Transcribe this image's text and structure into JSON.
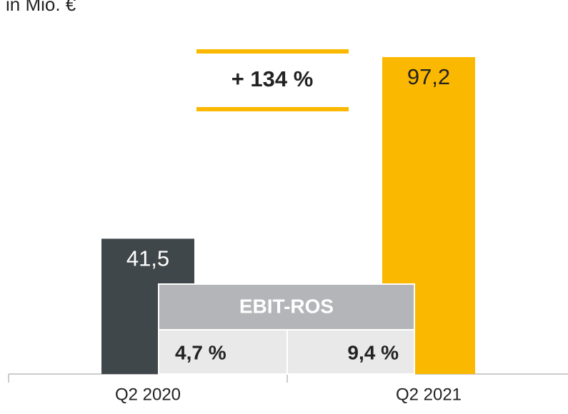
{
  "chart_data": {
    "type": "bar",
    "unit_label": "in Mio. €",
    "categories": [
      "Q2 2020",
      "Q2 2021"
    ],
    "values": [
      41.5,
      97.2
    ],
    "value_labels": [
      "41,5",
      "97,2"
    ],
    "colors": [
      "#40474a",
      "#fbb800"
    ],
    "value_label_colors": [
      "#ffffff",
      "#222222"
    ],
    "annotation": "+ 134 %",
    "ebit_ros": {
      "label": "EBIT-ROS",
      "values": [
        4.7,
        9.4
      ],
      "value_labels": [
        "4,7 %",
        "9,4 %"
      ]
    }
  }
}
